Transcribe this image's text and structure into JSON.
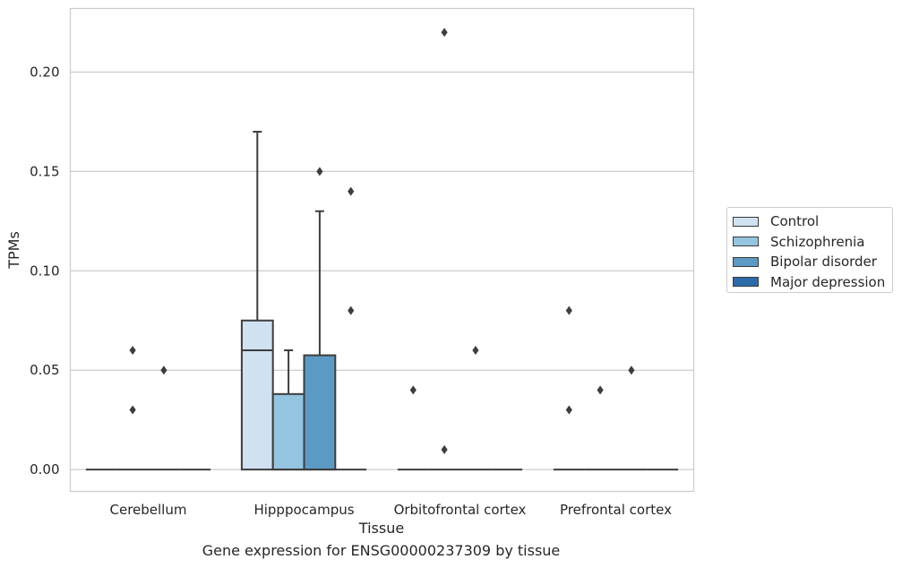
{
  "chart_data": {
    "type": "box",
    "xlabel": "Tissue",
    "ylabel": "TPMs",
    "footer": "Gene expression for ENSG00000237309 by tissue",
    "ylim": [
      -0.011,
      0.232
    ],
    "yticks": [
      "0.00",
      "0.05",
      "0.10",
      "0.15",
      "0.20"
    ],
    "ytick_values": [
      0,
      0.05,
      0.1,
      0.15,
      0.2
    ],
    "grid": true,
    "legend_position": "right",
    "categories": [
      "Cerebellum",
      "Hipppocampus",
      "Orbitofrontal cortex",
      "Prefrontal cortex"
    ],
    "series": [
      {
        "name": "Control",
        "color": "#d0e1f2",
        "boxes": [
          {
            "q1": 0,
            "median": 0,
            "q3": 0,
            "whisker_low": 0,
            "whisker_high": 0,
            "outliers": []
          },
          {
            "q1": 0,
            "median": 0.06,
            "q3": 0.075,
            "whisker_low": 0,
            "whisker_high": 0.17,
            "outliers": []
          },
          {
            "q1": 0,
            "median": 0,
            "q3": 0,
            "whisker_low": 0,
            "whisker_high": 0,
            "outliers": [
              0.04
            ]
          },
          {
            "q1": 0,
            "median": 0,
            "q3": 0,
            "whisker_low": 0,
            "whisker_high": 0,
            "outliers": [
              0.03,
              0.08
            ]
          }
        ]
      },
      {
        "name": "Schizophrenia",
        "color": "#94c4df",
        "boxes": [
          {
            "q1": 0,
            "median": 0,
            "q3": 0,
            "whisker_low": 0,
            "whisker_high": 0,
            "outliers": [
              0.03,
              0.06
            ]
          },
          {
            "q1": 0,
            "median": 0,
            "q3": 0.038,
            "whisker_low": 0,
            "whisker_high": 0.06,
            "outliers": []
          },
          {
            "q1": 0,
            "median": 0,
            "q3": 0,
            "whisker_low": 0,
            "whisker_high": 0,
            "outliers": [
              0.01,
              0.22
            ]
          },
          {
            "q1": 0,
            "median": 0,
            "q3": 0,
            "whisker_low": 0,
            "whisker_high": 0,
            "outliers": [
              0.04
            ]
          }
        ]
      },
      {
        "name": "Bipolar disorder",
        "color": "#5b9ac5",
        "boxes": [
          {
            "q1": 0,
            "median": 0,
            "q3": 0,
            "whisker_low": 0,
            "whisker_high": 0,
            "outliers": [
              0.05
            ]
          },
          {
            "q1": 0,
            "median": 0,
            "q3": 0.0575,
            "whisker_low": 0,
            "whisker_high": 0.13,
            "outliers": [
              0.15
            ]
          },
          {
            "q1": 0,
            "median": 0,
            "q3": 0,
            "whisker_low": 0,
            "whisker_high": 0,
            "outliers": [
              0.06
            ]
          },
          {
            "q1": 0,
            "median": 0,
            "q3": 0,
            "whisker_low": 0,
            "whisker_high": 0,
            "outliers": [
              0.05
            ]
          }
        ]
      },
      {
        "name": "Major depression",
        "color": "#2b6ba8",
        "boxes": [
          {
            "q1": 0,
            "median": 0,
            "q3": 0,
            "whisker_low": 0,
            "whisker_high": 0,
            "outliers": []
          },
          {
            "q1": 0,
            "median": 0,
            "q3": 0,
            "whisker_low": 0,
            "whisker_high": 0,
            "outliers": [
              0.08,
              0.14
            ]
          },
          {
            "q1": 0,
            "median": 0,
            "q3": 0,
            "whisker_low": 0,
            "whisker_high": 0,
            "outliers": []
          },
          {
            "q1": 0,
            "median": 0,
            "q3": 0,
            "whisker_low": 0,
            "whisker_high": 0,
            "outliers": []
          }
        ]
      }
    ]
  }
}
